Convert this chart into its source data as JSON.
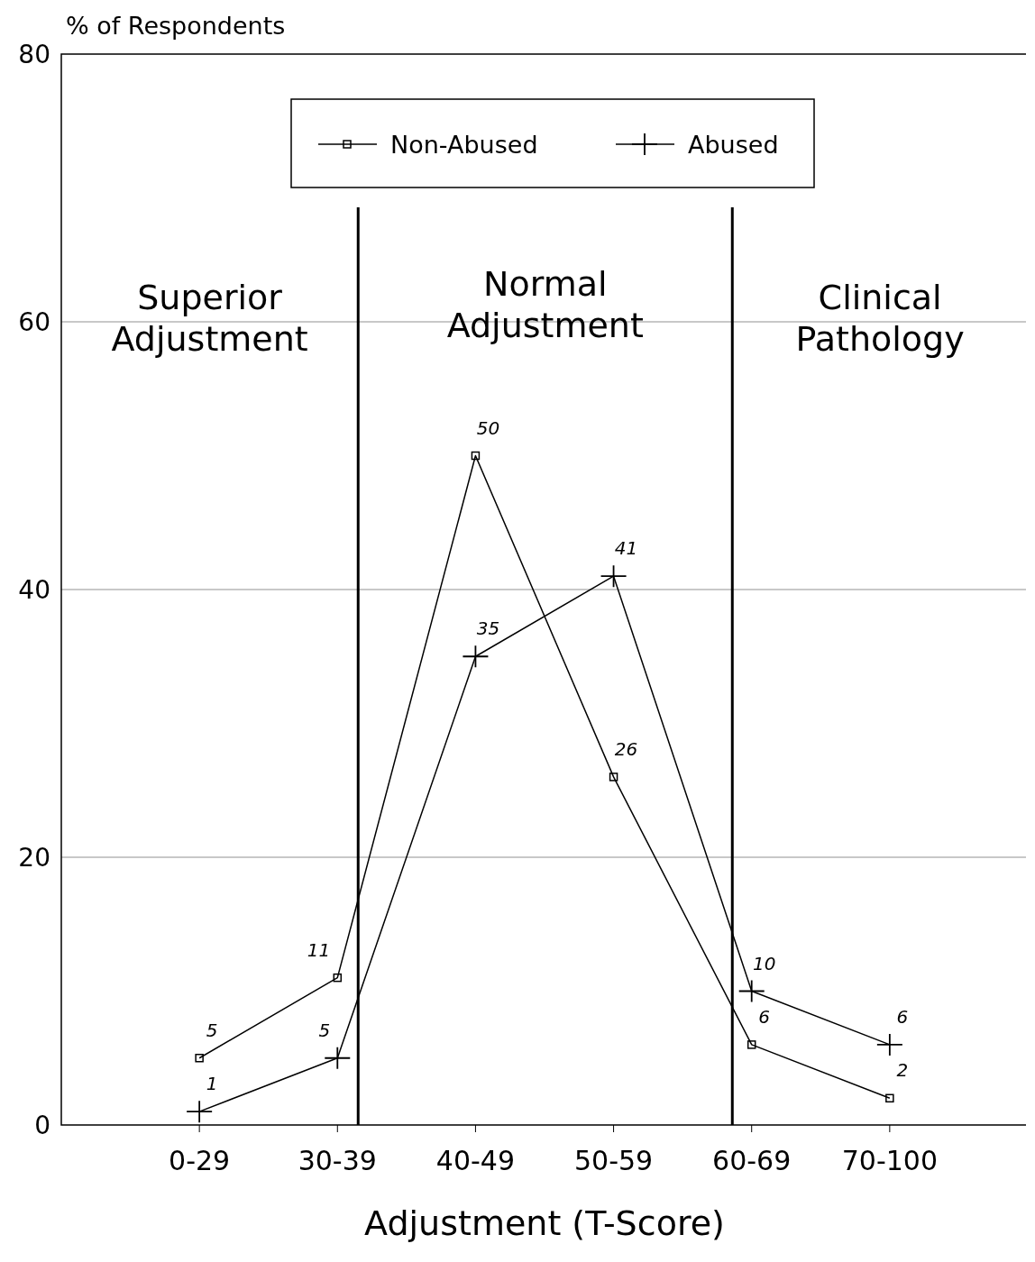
{
  "chart_data": {
    "type": "line",
    "xlabel": "Adjustment (T-Score)",
    "ylabel": "% of Respondents",
    "categories": [
      "0-29",
      "30-39",
      "40-49",
      "50-59",
      "60-69",
      "70-100"
    ],
    "series": [
      {
        "name": "Non-Abused",
        "color": "#000000",
        "marker": "square",
        "values": [
          5,
          11,
          50,
          26,
          6,
          2
        ]
      },
      {
        "name": "Abused",
        "color": "#000000",
        "marker": "cross",
        "values": [
          1,
          5,
          35,
          41,
          10,
          6
        ]
      }
    ],
    "ylim": [
      0,
      80
    ],
    "yticks": [
      0,
      20,
      40,
      60,
      80
    ],
    "grid": "y",
    "legend": "top",
    "data_labels": true,
    "ref_lines": [
      {
        "axis": "x",
        "value": "30-39",
        "color": "#000000"
      },
      {
        "axis": "x",
        "value": "60-69",
        "color": "#000000"
      }
    ],
    "annotations": [
      "Superior Adjustment",
      "Normal Adjustment",
      "Clinical Pathology"
    ]
  }
}
